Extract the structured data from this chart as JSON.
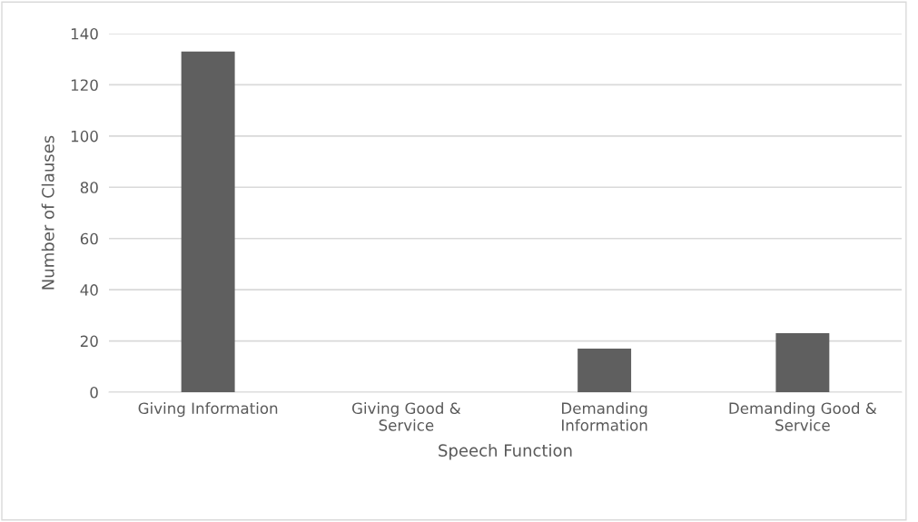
{
  "chart_data": {
    "type": "bar",
    "categories": [
      "Giving Information",
      "Giving Good &\nService",
      "Demanding\nInformation",
      "Demanding Good &\nService"
    ],
    "values": [
      133,
      0,
      17,
      23
    ],
    "color": "#5f5f5f",
    "xlabel": "Speech Function",
    "ylabel": "Number of Clauses",
    "ylim": [
      0,
      140
    ],
    "yticks": [
      0,
      20,
      40,
      60,
      80,
      100,
      120,
      140
    ],
    "grid": "y",
    "legend": false
  }
}
